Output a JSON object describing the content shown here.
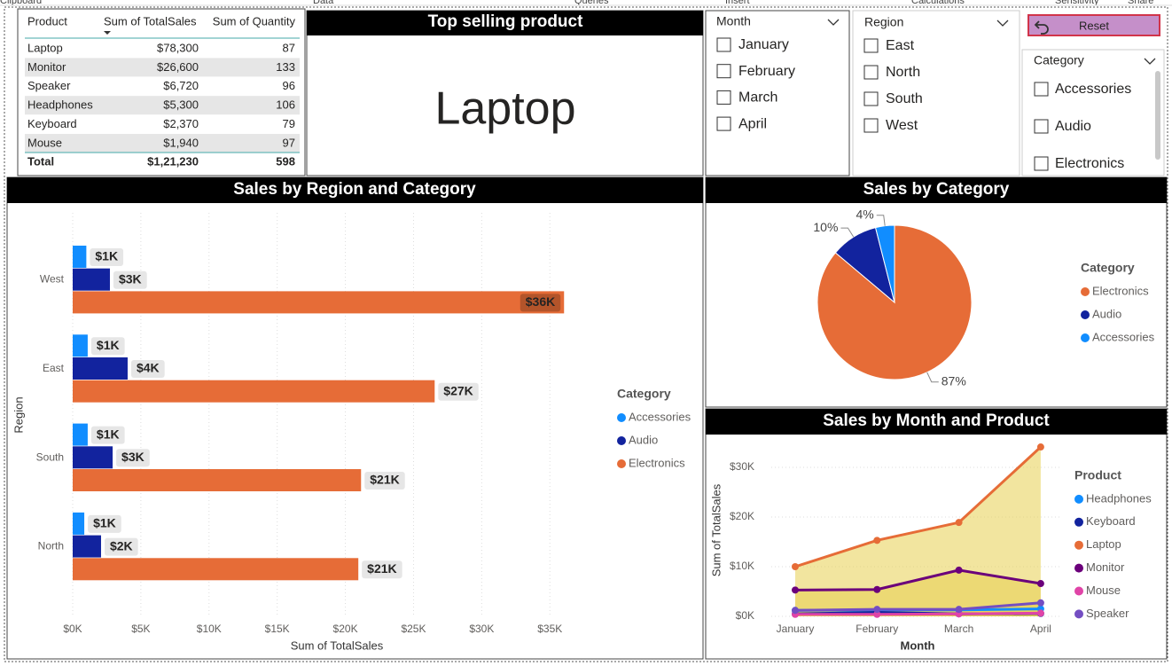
{
  "ribbon": [
    "Clipboard",
    "Data",
    "Queries",
    "Insert",
    "Calculations",
    "Sensitivity",
    "Share"
  ],
  "table": {
    "columns": [
      "Product",
      "Sum of TotalSales",
      "Sum of Quantity"
    ],
    "rows": [
      [
        "Laptop",
        "$78,300",
        87
      ],
      [
        "Monitor",
        "$26,600",
        133
      ],
      [
        "Speaker",
        "$6,720",
        96
      ],
      [
        "Headphones",
        "$5,300",
        106
      ],
      [
        "Keyboard",
        "$2,370",
        79
      ],
      [
        "Mouse",
        "$1,940",
        97
      ]
    ],
    "total": [
      "Total",
      "$1,21,230",
      598
    ]
  },
  "card": {
    "title": "Top selling product",
    "value": "Laptop"
  },
  "slicers": [
    {
      "title": "Month",
      "items": [
        "January",
        "February",
        "March",
        "April"
      ]
    },
    {
      "title": "Region",
      "items": [
        "East",
        "North",
        "South",
        "West"
      ]
    },
    {
      "title": "Category",
      "items": [
        "Accessories",
        "Audio",
        "Electronics"
      ]
    }
  ],
  "reset": "Reset",
  "chart_data": [
    {
      "type": "hbar",
      "title": "Sales by Region and Category",
      "xlabel": "Sum of TotalSales",
      "ylabel": "Region",
      "categories": [
        "West",
        "East",
        "South",
        "North"
      ],
      "legend_title": "Category",
      "series": [
        {
          "name": "Accessories",
          "color": "#118DFF",
          "values": [
            1000,
            1100,
            1100,
            850
          ],
          "value_labels": [
            "$1K",
            "$1K",
            "$1K",
            "$1K"
          ]
        },
        {
          "name": "Audio",
          "color": "#12239E",
          "values": [
            2730,
            4030,
            2930,
            2080
          ],
          "value_labels": [
            "$3K",
            "$4K",
            "$3K",
            "$2K"
          ]
        },
        {
          "name": "Electronics",
          "color": "#E66C37",
          "values": [
            36040,
            26550,
            21150,
            20950
          ],
          "value_labels": [
            "$36K",
            "$27K",
            "$21K",
            "$21K"
          ]
        }
      ],
      "xlim": [
        0,
        37000
      ],
      "xticks": [
        {
          "value": 0,
          "label": "$0K"
        },
        {
          "value": 5000,
          "label": "$5K"
        },
        {
          "value": 10000,
          "label": "$10K"
        },
        {
          "value": 15000,
          "label": "$15K"
        },
        {
          "value": 20000,
          "label": "$20K"
        },
        {
          "value": 25000,
          "label": "$25K"
        },
        {
          "value": 30000,
          "label": "$30K"
        },
        {
          "value": 35000,
          "label": "$35K"
        }
      ],
      "grid": true
    },
    {
      "type": "pie",
      "title": "Sales by Category",
      "legend_title": "Category",
      "categories": [
        "Electronics",
        "Audio",
        "Accessories"
      ],
      "values": [
        87,
        10,
        4
      ],
      "value_labels": [
        "87%",
        "10%",
        "4%"
      ],
      "colors": [
        "#E66C37",
        "#12239E",
        "#118DFF"
      ]
    },
    {
      "type": "area",
      "title": "Sales by Month and Product",
      "xlabel": "Month",
      "ylabel": "Sum of TotalSales",
      "legend_title": "Product",
      "categories": [
        "January",
        "February",
        "March",
        "April"
      ],
      "area_color": "#e8cf50",
      "series": [
        {
          "name": "Headphones",
          "color": "#118DFF",
          "values": [
            1200,
            1300,
            1300,
            1500
          ]
        },
        {
          "name": "Keyboard",
          "color": "#12239E",
          "values": [
            500,
            800,
            500,
            570
          ]
        },
        {
          "name": "Laptop",
          "color": "#E66C37",
          "values": [
            10000,
            15300,
            18900,
            34100
          ]
        },
        {
          "name": "Monitor",
          "color": "#6B007B",
          "values": [
            5300,
            5400,
            9300,
            6600
          ]
        },
        {
          "name": "Mouse",
          "color": "#E044A7",
          "values": [
            400,
            400,
            500,
            640
          ]
        },
        {
          "name": "Speaker",
          "color": "#744EC2",
          "values": [
            1200,
            1400,
            1400,
            2720
          ]
        }
      ],
      "ylim": [
        0,
        35000
      ],
      "yticks": [
        {
          "value": 0,
          "label": "$0K"
        },
        {
          "value": 10000,
          "label": "$10K"
        },
        {
          "value": 20000,
          "label": "$20K"
        },
        {
          "value": 30000,
          "label": "$30K"
        }
      ],
      "grid": true
    }
  ]
}
